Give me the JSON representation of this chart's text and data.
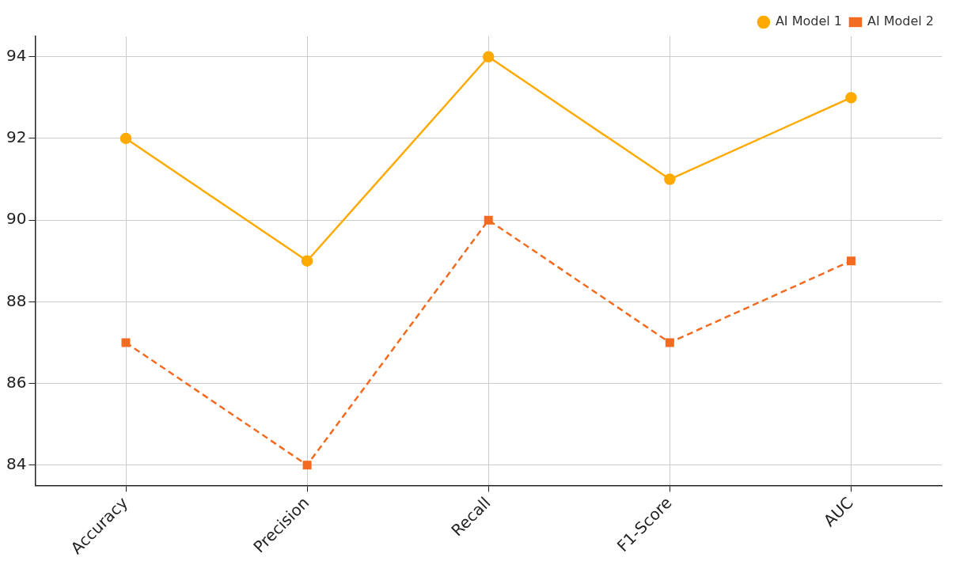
{
  "chart_data": {
    "type": "line",
    "categories": [
      "Accuracy",
      "Precision",
      "Recall",
      "F1-Score",
      "AUC"
    ],
    "series": [
      {
        "name": "AI Model 1",
        "color": "#ffaa00",
        "values": [
          92,
          89,
          94,
          91,
          93
        ],
        "marker": "circle",
        "line_style": "solid"
      },
      {
        "name": "AI Model 2",
        "color": "#f26b21",
        "values": [
          87,
          84,
          90,
          87,
          89
        ],
        "marker": "square",
        "line_style": "dashed"
      }
    ],
    "ylim": [
      83.5,
      94.5
    ],
    "yticks": [
      84,
      86,
      88,
      90,
      92,
      94
    ],
    "grid": true,
    "legend": "top right"
  }
}
